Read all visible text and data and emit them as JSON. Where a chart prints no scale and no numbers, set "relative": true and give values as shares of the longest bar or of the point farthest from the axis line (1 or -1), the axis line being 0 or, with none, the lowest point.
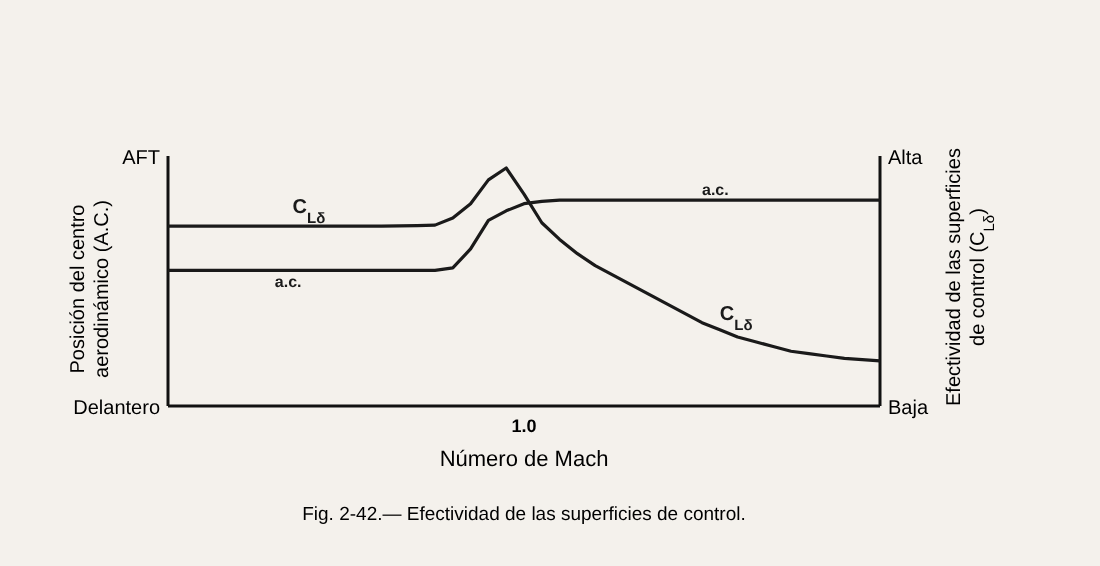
{
  "chart_data": {
    "type": "line",
    "relative": true,
    "xlabel": "Número de Mach",
    "ylabel": "Posición del centro aerodinámico (A.C.)",
    "y2label": "Efectividad de las superficies de control (C$_{Lδ}$)",
    "line_style": "solid",
    "annotations": [
      "1.0",
      "AFT",
      "Delantero",
      "Alta",
      "Baja",
      "Fig. 2-42.— Efectividad de las superficies de control."
    ],
    "categories": [
      null,
      null,
      null,
      null,
      null,
      null,
      null,
      null,
      null,
      null,
      null,
      null,
      null,
      null,
      null,
      null,
      null,
      null,
      null,
      null,
      null,
      null,
      null,
      null,
      null,
      null,
      null,
      null,
      null,
      null,
      null,
      null,
      null,
      null,
      null,
      null,
      null,
      null,
      null,
      null,
      null
    ],
    "series": [
      {
        "name": "C$_{Lδ}$",
        "color": "#1a1a1a",
        "values": [
          0.756,
          0.756,
          0.756,
          0.756,
          0.756,
          0.756,
          0.756,
          0.756,
          0.756,
          0.756,
          0.756,
          0.756,
          0.756,
          0.757,
          0.758,
          0.76,
          0.79,
          0.85,
          0.95,
          1.0,
          0.89,
          0.77,
          0.7,
          0.64,
          0.59,
          0.55,
          0.51,
          0.47,
          0.43,
          0.39,
          0.35,
          0.32,
          0.29,
          0.27,
          0.25,
          0.23,
          0.22,
          0.21,
          0.2,
          0.195,
          0.19
        ]
      },
      {
        "name": "a.c.",
        "color": "#1a1a1a",
        "values": [
          0.57,
          0.57,
          0.57,
          0.57,
          0.57,
          0.57,
          0.57,
          0.57,
          0.57,
          0.57,
          0.57,
          0.57,
          0.57,
          0.57,
          0.57,
          0.57,
          0.58,
          0.66,
          0.78,
          0.82,
          0.85,
          0.86,
          0.865,
          0.865,
          0.865,
          0.865,
          0.865,
          0.865,
          0.865,
          0.865,
          0.865,
          0.865,
          0.865,
          0.865,
          0.865,
          0.865,
          0.865,
          0.865,
          0.865,
          0.865,
          0.865
        ]
      }
    ]
  }
}
